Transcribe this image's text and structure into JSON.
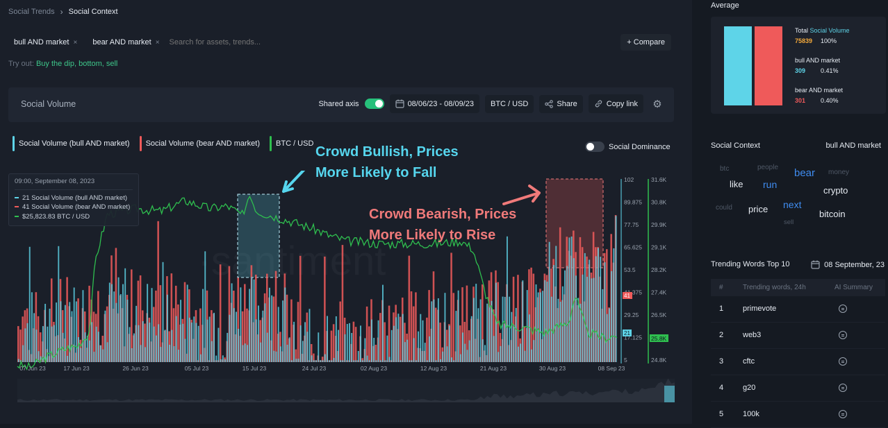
{
  "breadcrumb": {
    "parent": "Social Trends",
    "separator": "›",
    "current": "Social Context"
  },
  "search": {
    "chips": [
      {
        "label": "bull AND market",
        "remove": "×"
      },
      {
        "label": "bear AND market",
        "remove": "×"
      }
    ],
    "placeholder": "Search for assets, trends...",
    "compare_label": "+ Compare"
  },
  "tryout": {
    "prefix": "Try out:",
    "suggestions": "Buy the dip, bottom, sell"
  },
  "panel": {
    "title": "Social Volume",
    "shared_axis_label": "Shared axis",
    "date_range": "08/06/23 - 08/09/23",
    "pair": "BTC / USD",
    "share_label": "Share",
    "copy_link_label": "Copy link"
  },
  "legend": [
    {
      "label": "Social Volume (bull AND market)",
      "color": "#5ed4e8"
    },
    {
      "label": "Social Volume (bear AND market)",
      "color": "#ef5a5a"
    },
    {
      "label": "BTC / USD",
      "color": "#2fbf4f"
    }
  ],
  "dominance_label": "Social Dominance",
  "tooltip": {
    "time": "09:00, September 08, 2023",
    "rows": [
      {
        "text": "21 Social Volume (bull AND market)",
        "color": "#5ed4e8"
      },
      {
        "text": "41 Social Volume (bear AND market)",
        "color": "#ef5a5a"
      },
      {
        "text": "$25,823.83 BTC / USD",
        "color": "#2fbf4f"
      }
    ]
  },
  "annotations": {
    "bullish_line1": "Crowd Bullish, Prices",
    "bullish_line2": "More Likely to Fall",
    "bearish_line1": "Crowd Bearish, Prices",
    "bearish_line2": "More Likely to Rise"
  },
  "watermark": "·santiment",
  "chart_data": {
    "type": "bar",
    "x_ticks": [
      "07 Jun 23",
      "17 Jun 23",
      "26 Jun 23",
      "05 Jul 23",
      "15 Jul 23",
      "24 Jul 23",
      "02 Aug 23",
      "12 Aug 23",
      "21 Aug 23",
      "30 Aug 23",
      "08 Sep 23"
    ],
    "volume_axis_ticks": [
      "102",
      "89.875",
      "77.75",
      "65.625",
      "53.5",
      "41.375",
      "29.25",
      "17.125",
      "5"
    ],
    "price_axis_ticks": [
      "31.6K",
      "30.8K",
      "29.9K",
      "29.1K",
      "28.2K",
      "27.4K",
      "26.5K",
      "25.6K",
      "24.8K"
    ],
    "volume_range": [
      5,
      102
    ],
    "price_range": [
      24.8,
      31.6
    ],
    "price_series_name": "BTC / USD",
    "price_keypoints_k": [
      [
        0,
        24.7
      ],
      [
        0.02,
        24.6
      ],
      [
        0.05,
        25.0
      ],
      [
        0.08,
        25.3
      ],
      [
        0.1,
        25.4
      ],
      [
        0.12,
        25.9
      ],
      [
        0.13,
        28.6
      ],
      [
        0.15,
        30.3
      ],
      [
        0.2,
        30.5
      ],
      [
        0.24,
        30.4
      ],
      [
        0.28,
        30.8
      ],
      [
        0.32,
        30.5
      ],
      [
        0.35,
        30.6
      ],
      [
        0.38,
        30.2
      ],
      [
        0.385,
        31.1
      ],
      [
        0.4,
        30.4
      ],
      [
        0.43,
        30.2
      ],
      [
        0.46,
        30.0
      ],
      [
        0.5,
        29.7
      ],
      [
        0.52,
        29.5
      ],
      [
        0.55,
        29.3
      ],
      [
        0.6,
        29.2
      ],
      [
        0.65,
        29.2
      ],
      [
        0.7,
        29.2
      ],
      [
        0.74,
        29.3
      ],
      [
        0.76,
        29.0
      ],
      [
        0.78,
        27.4
      ],
      [
        0.8,
        26.2
      ],
      [
        0.84,
        26.1
      ],
      [
        0.88,
        25.9
      ],
      [
        0.92,
        26.3
      ],
      [
        0.93,
        27.3
      ],
      [
        0.95,
        25.9
      ],
      [
        0.98,
        25.7
      ],
      [
        1.0,
        25.8
      ]
    ],
    "series": [
      {
        "name": "Social Volume (bull AND market)",
        "latest": 21
      },
      {
        "name": "Social Volume (bear AND market)",
        "latest": 41
      }
    ],
    "latest_labels": {
      "bull": "21",
      "bear": "41",
      "price": "25.8K"
    },
    "highlight_bullish": {
      "from": "12 Jul 23",
      "to": "18 Jul 23"
    },
    "highlight_bearish": {
      "from": "29 Aug 23",
      "to": "08 Sep 23"
    }
  },
  "average": {
    "label": "Average",
    "total_label": "Total",
    "total_metric": "Social Volume",
    "total_value": "75839",
    "total_pct": "100%",
    "bull_label": "bull AND market",
    "bull_value": "309",
    "bull_pct": "0.41%",
    "bear_label": "bear AND market",
    "bear_value": "301",
    "bear_pct": "0.40%",
    "colors": {
      "total": "#f4a93b",
      "bull": "#5ed4e8",
      "bear": "#ef5a5a"
    }
  },
  "social_context": {
    "title": "Social Context",
    "selected": "bull AND market",
    "words": [
      "btc",
      "people",
      "bear",
      "money",
      "like",
      "run",
      "crypto",
      "could",
      "price",
      "next",
      "bitcoin",
      "sell"
    ]
  },
  "trending": {
    "title": "Trending Words Top 10",
    "date": "08 September, 23",
    "col_num": "#",
    "col_word": "Trending words, 24h",
    "col_ai": "AI Summary",
    "rows": [
      {
        "n": "1",
        "word": "primevote"
      },
      {
        "n": "2",
        "word": "web3"
      },
      {
        "n": "3",
        "word": "cftc"
      },
      {
        "n": "4",
        "word": "g20"
      },
      {
        "n": "5",
        "word": "100k"
      }
    ]
  }
}
